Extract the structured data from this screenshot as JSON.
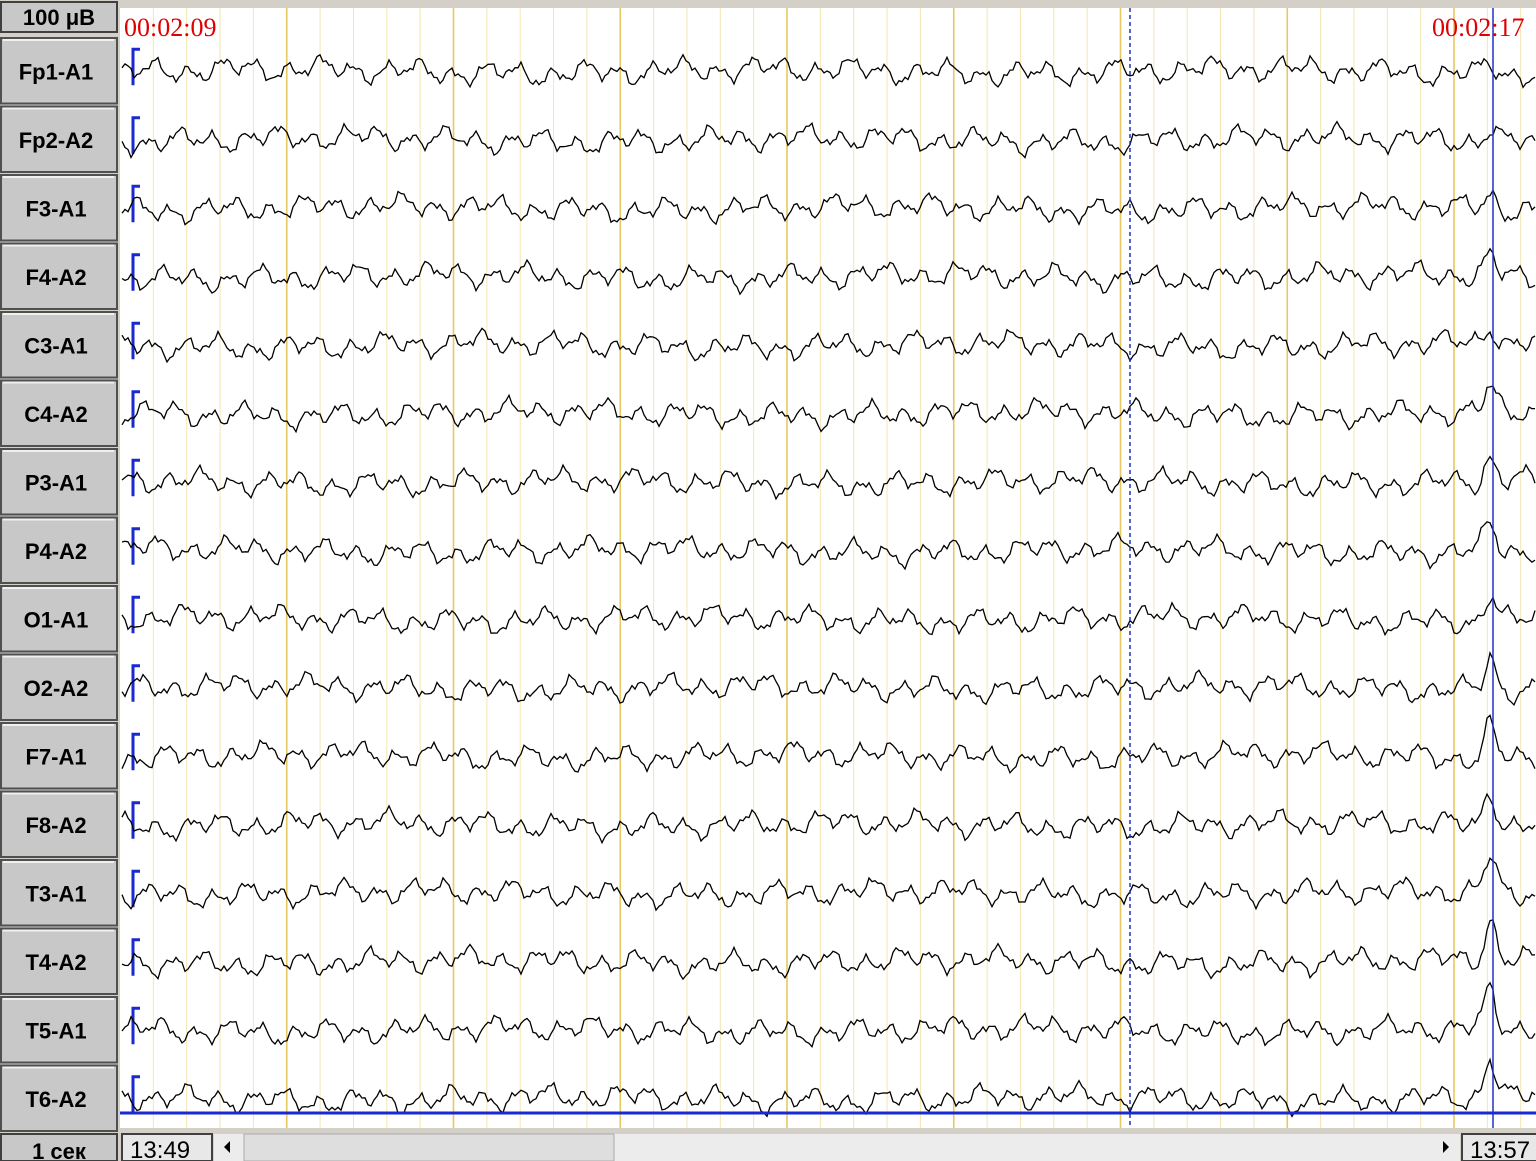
{
  "scale_label": "100 μB",
  "time_markers": [
    "00:02:09",
    "00:02:17"
  ],
  "channels": [
    "Fp1-A1",
    "Fp2-A2",
    "F3-A1",
    "F4-A2",
    "C3-A1",
    "C4-A2",
    "P3-A1",
    "P4-A2",
    "O1-A1",
    "O2-A2",
    "F7-A1",
    "F8-A2",
    "T3-A1",
    "T4-A2",
    "T5-A1",
    "T6-A2"
  ],
  "footer": {
    "time_base": "1 сек",
    "start_time": "13:49",
    "end_time": "13:57"
  }
}
